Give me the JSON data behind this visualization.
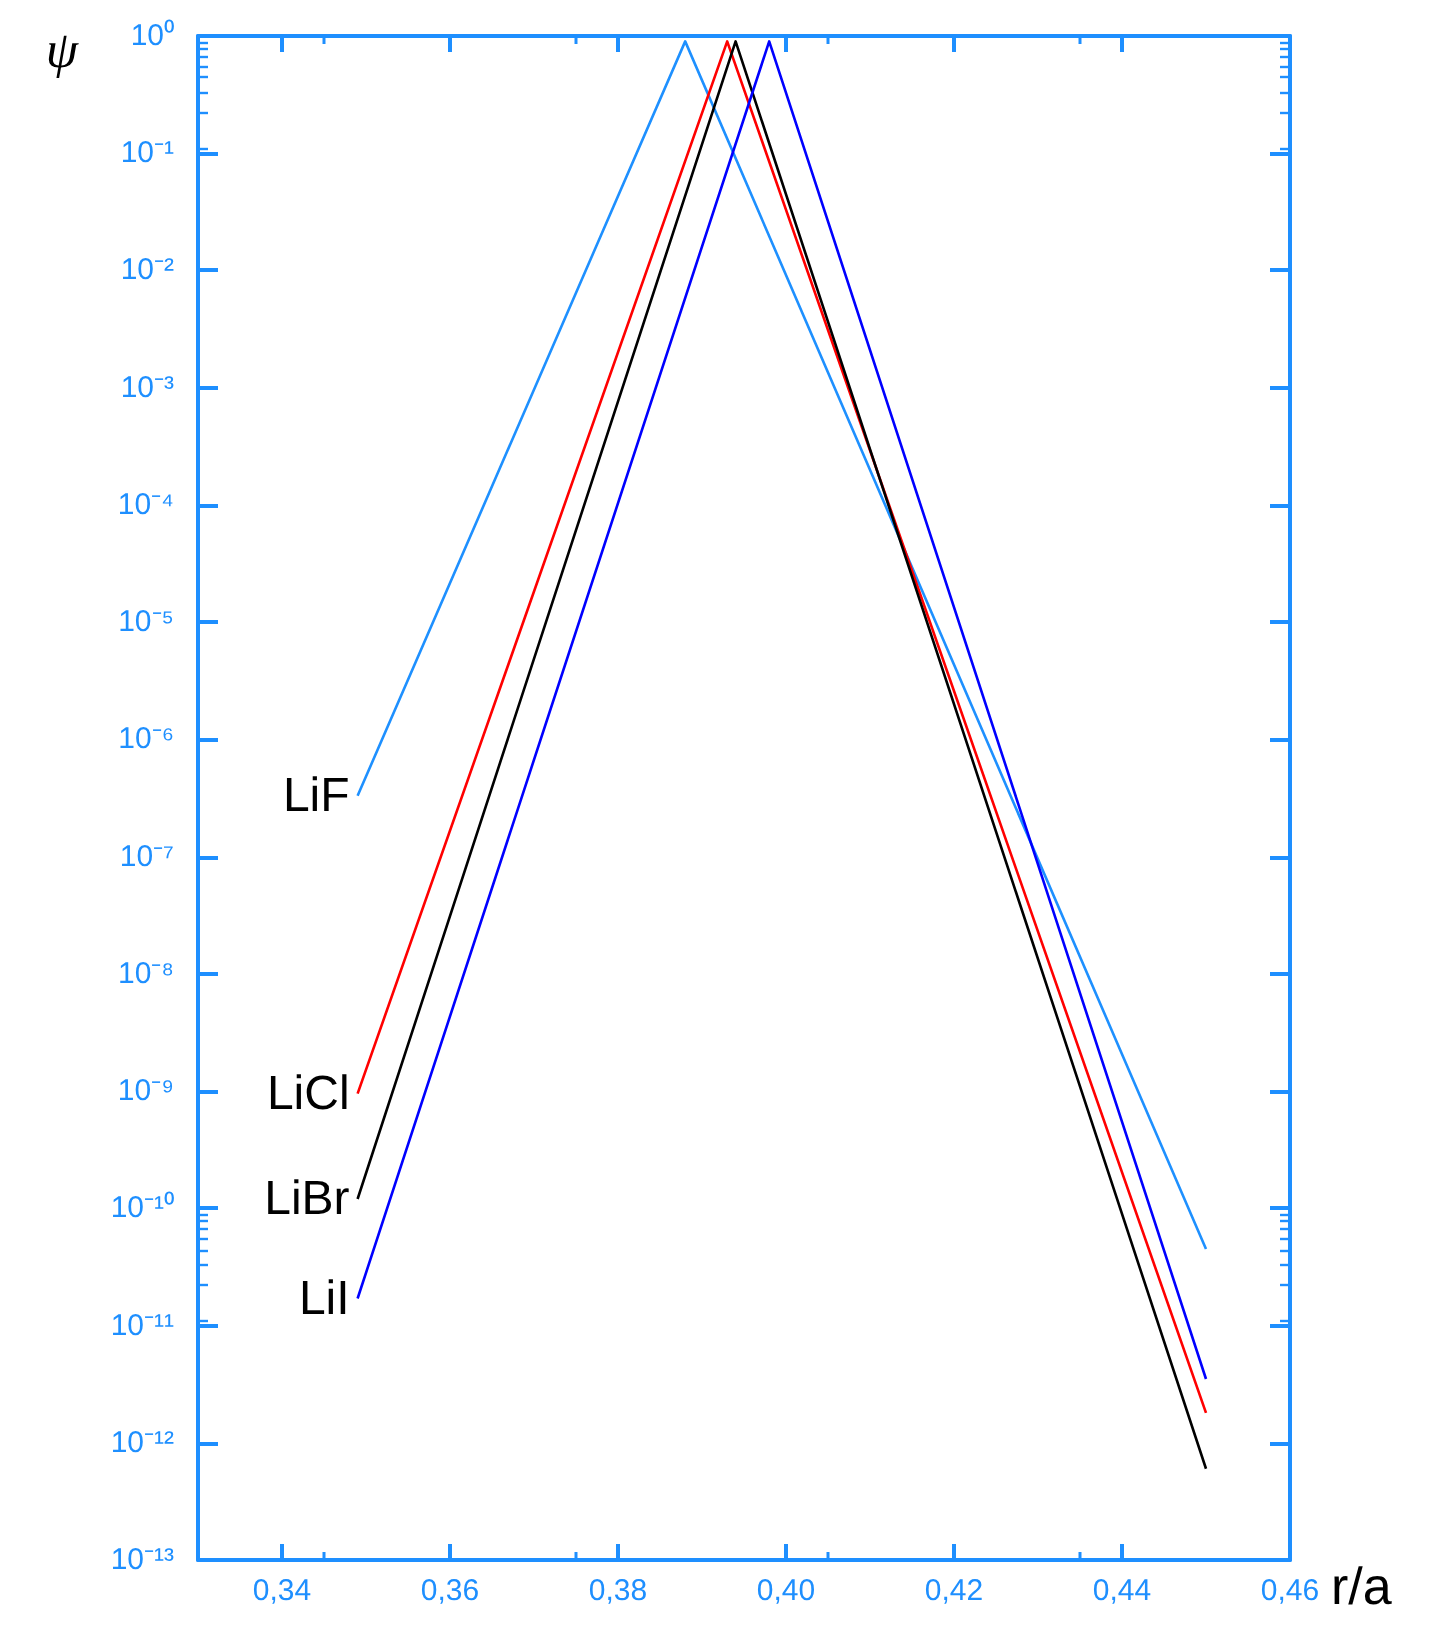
{
  "chart_data": {
    "type": "line",
    "xlabel": "r/a",
    "ylabel": "ψ",
    "log": "y",
    "grid": false,
    "legend": false,
    "marker": "none",
    "line_style": "solid",
    "xlim": [
      0.33,
      0.46
    ],
    "xticks": [
      {
        "value": 0.34,
        "label": "0,34"
      },
      {
        "value": 0.36,
        "label": "0,36"
      },
      {
        "value": 0.38,
        "label": "0,38"
      },
      {
        "value": 0.4,
        "label": "0,40"
      },
      {
        "value": 0.42,
        "label": "0,42"
      },
      {
        "value": 0.44,
        "label": "0,44"
      },
      {
        "value": 0.46,
        "label": "0,46"
      }
    ],
    "ylim": [
      1e-13,
      1
    ],
    "yticks": [
      {
        "value": 1e-13,
        "label": "10⁻¹³"
      },
      {
        "value": 1e-12,
        "label": "10⁻¹²"
      },
      {
        "value": 1e-11,
        "label": "10⁻¹¹"
      },
      {
        "value": 1e-10,
        "label": "10⁻¹⁰"
      },
      {
        "value": 1e-09,
        "label": "10⁻⁹"
      },
      {
        "value": 1e-08,
        "label": "10⁻⁸"
      },
      {
        "value": 1e-07,
        "label": "10⁻⁷"
      },
      {
        "value": 1e-06,
        "label": "10⁻⁶"
      },
      {
        "value": 1e-05,
        "label": "10⁻⁵"
      },
      {
        "value": 0.0001,
        "label": "10⁻⁴"
      },
      {
        "value": 0.001,
        "label": "10⁻³"
      },
      {
        "value": 0.01,
        "label": "10⁻²"
      },
      {
        "value": 0.1,
        "label": "10⁻¹"
      },
      {
        "value": 1,
        "label": "10⁰"
      }
    ],
    "series": [
      {
        "name": "LiF",
        "color": "#1e90ff",
        "x": [
          0.349,
          0.388,
          0.45
        ],
        "values": [
          3.3e-07,
          0.9,
          4.5e-11
        ]
      },
      {
        "name": "LiCl",
        "color": "#ff0000",
        "x": [
          0.349,
          0.393,
          0.45
        ],
        "values": [
          9.5e-10,
          0.9,
          1.8e-12
        ]
      },
      {
        "name": "LiBr",
        "color": "#000000",
        "x": [
          0.349,
          0.394,
          0.45
        ],
        "values": [
          1.2e-10,
          0.9,
          6e-13
        ]
      },
      {
        "name": "LiI",
        "color": "#0000ff",
        "x": [
          0.349,
          0.398,
          0.45
        ],
        "values": [
          1.7e-11,
          0.9,
          3.5e-12
        ]
      }
    ]
  }
}
